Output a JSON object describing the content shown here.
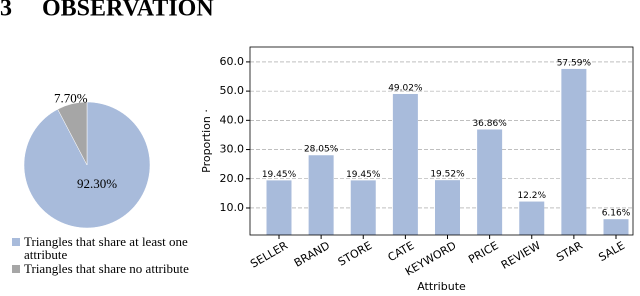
{
  "section_number": "3",
  "section_title": "OBSERVATION",
  "chart_data": [
    {
      "type": "pie",
      "series": [
        {
          "name": "Triangles that share at least one attribute",
          "color": "#a8bbdb",
          "values": [
            92.3
          ],
          "value_labels": [
            "92.30%"
          ]
        },
        {
          "name": "Triangles that share no attribute",
          "color": "#a6a6a6",
          "values": [
            7.7
          ],
          "value_labels": [
            "7.70%"
          ]
        }
      ]
    },
    {
      "type": "bar",
      "x_label": "Attribute",
      "y_label": "Proportion ·",
      "categories": [
        "SELLER",
        "BRAND",
        "STORE",
        "CATE",
        "KEYWORD",
        "PRICE",
        "REVIEW",
        "STAR",
        "SALE"
      ],
      "values": [
        19.45,
        28.05,
        19.45,
        49.02,
        19.52,
        36.86,
        12.2,
        57.59,
        6.16
      ],
      "value_labels": [
        "19.45%",
        "28.05%",
        "19.45%",
        "49.02%",
        "19.52%",
        "36.86%",
        "12.2%",
        "57.59%",
        "6.16%"
      ],
      "color": "#a8bbdb",
      "ylim": [
        0.75,
        65.1
      ],
      "yticks": [
        {
          "value": 10,
          "label": "10.0"
        },
        {
          "value": 20,
          "label": "20.0"
        },
        {
          "value": 30,
          "label": "30.0"
        },
        {
          "value": 40,
          "label": "40.0"
        },
        {
          "value": 50,
          "label": "50.0"
        },
        {
          "value": 60,
          "label": "60.0"
        }
      ],
      "grid": true
    }
  ]
}
